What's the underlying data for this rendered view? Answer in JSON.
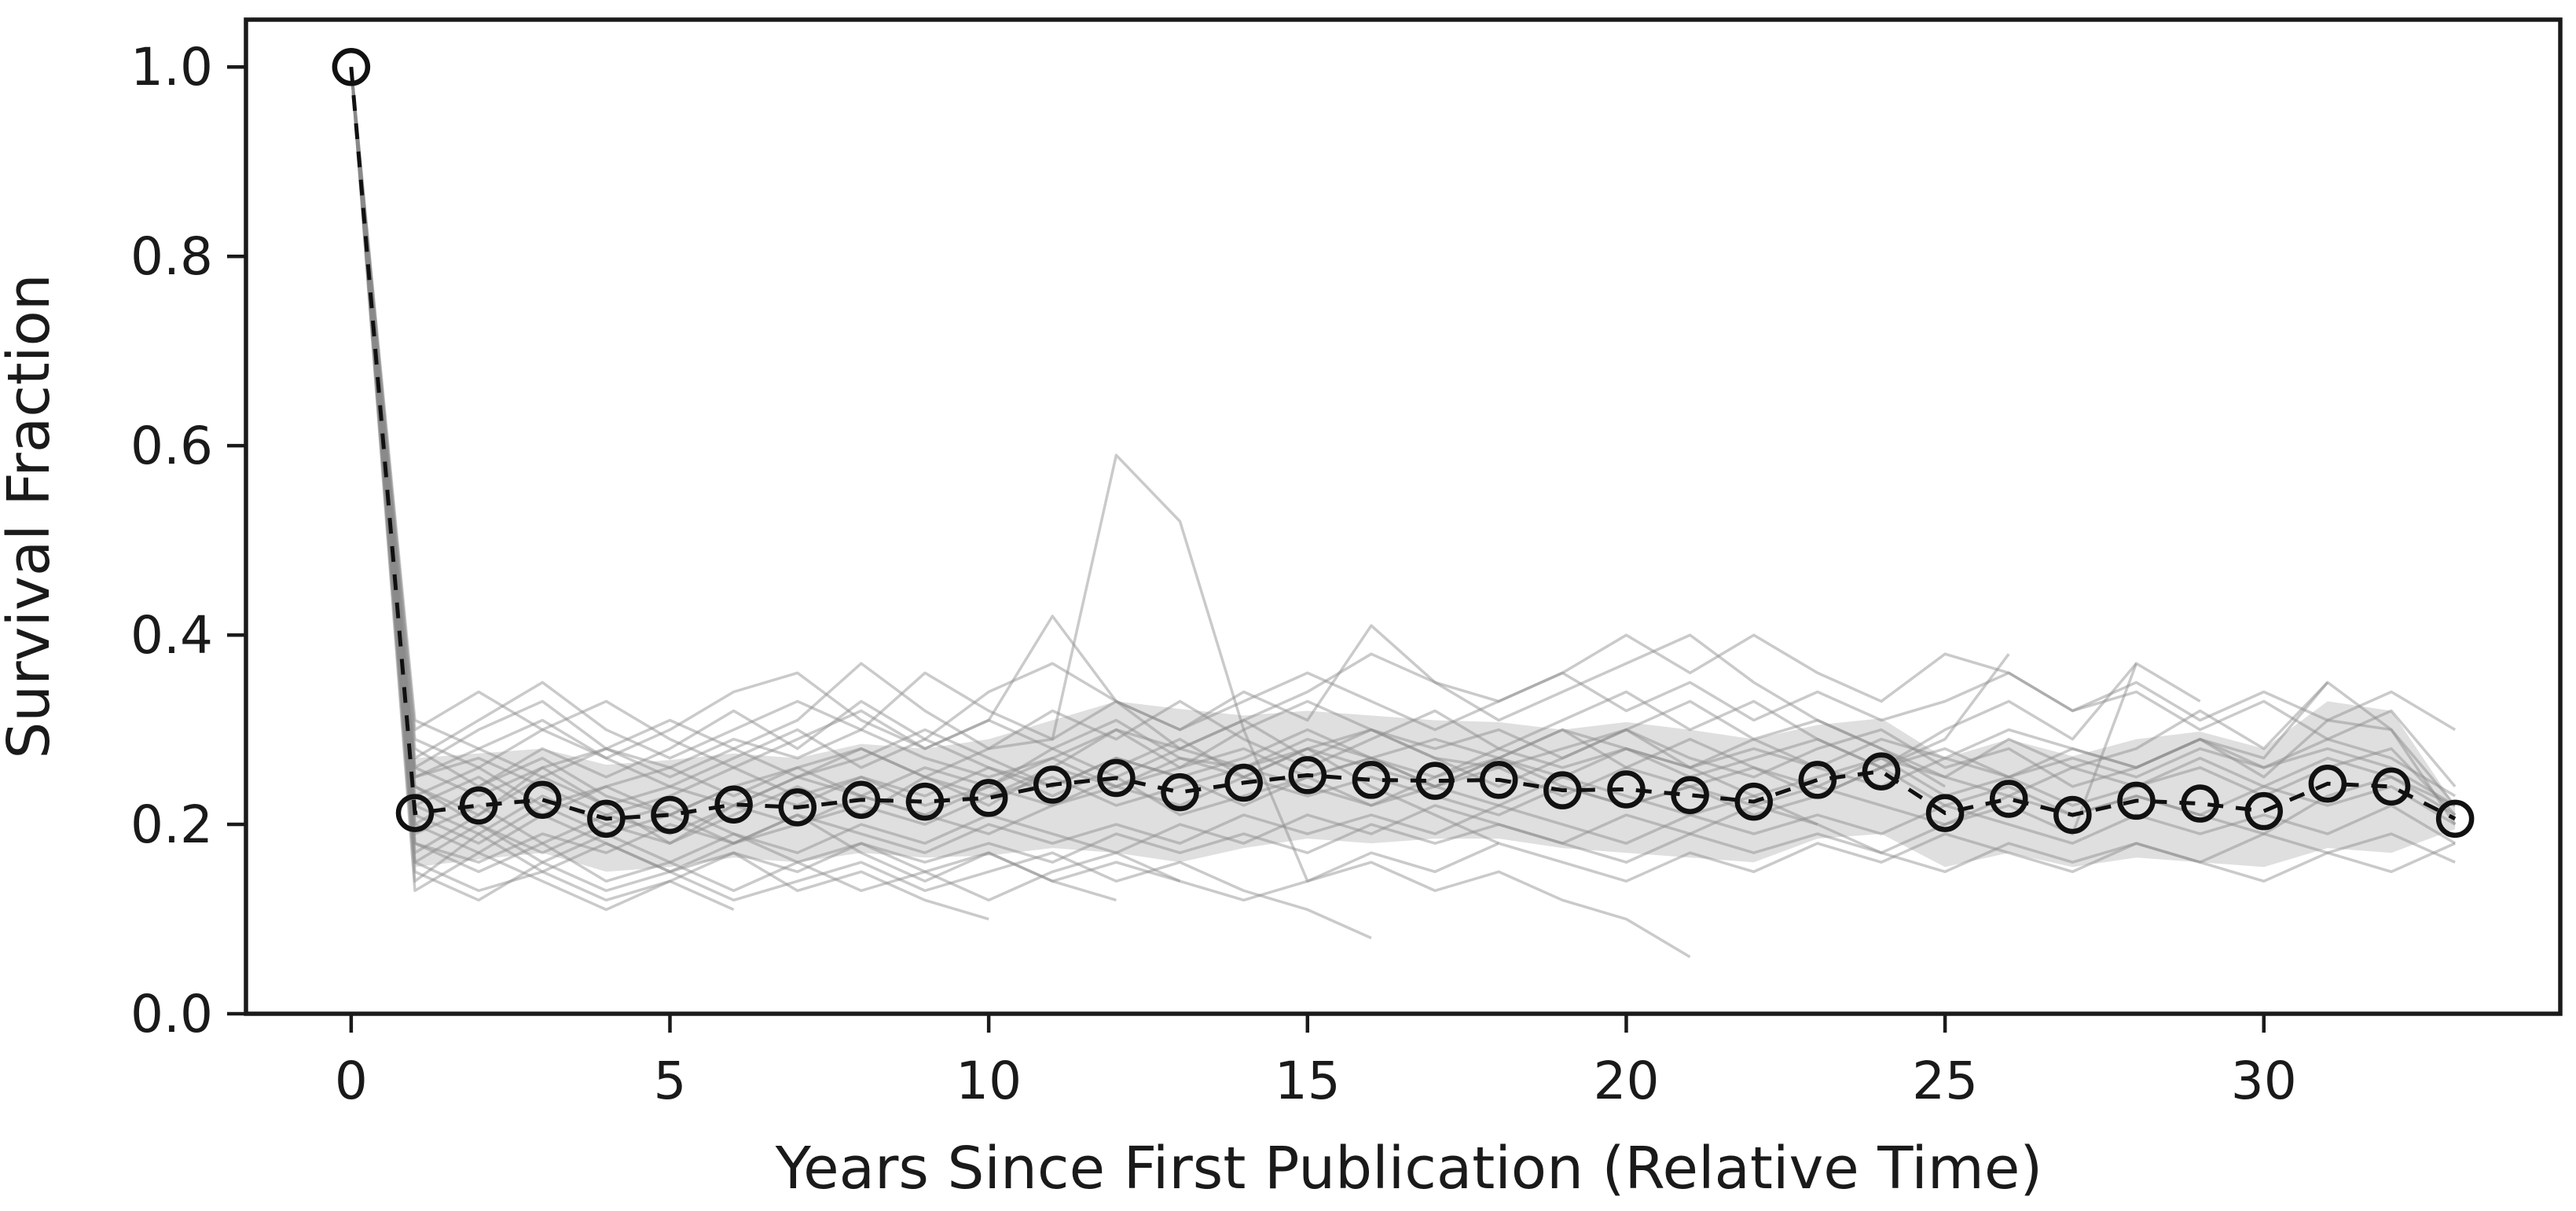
{
  "figure": {
    "background": "#ffffff"
  },
  "chart_data": {
    "type": "line",
    "title": "",
    "xlabel": "Years Since First Publication (Relative Time)",
    "ylabel": "Survival Fraction",
    "xlim": [
      -1.65,
      34.65
    ],
    "ylim": [
      0,
      1.05
    ],
    "xticks": [
      0,
      5,
      10,
      15,
      20,
      25,
      30
    ],
    "ytick_values": [
      0.0,
      0.2,
      0.4,
      0.6,
      0.8,
      1.0
    ],
    "ytick_labels": [
      "0.0",
      "0.2",
      "0.4",
      "0.6",
      "0.8",
      "1.0"
    ],
    "grid": false,
    "legend": null,
    "mean_series": {
      "name": "mean-survival-fraction",
      "marker": "open-circle",
      "linestyle": "dashed",
      "x": [
        0,
        1,
        2,
        3,
        4,
        5,
        6,
        7,
        8,
        9,
        10,
        11,
        12,
        13,
        14,
        15,
        16,
        17,
        18,
        19,
        20,
        21,
        22,
        23,
        24,
        25,
        26,
        27,
        28,
        29,
        30,
        31,
        32,
        33
      ],
      "y": [
        1.0,
        0.212,
        0.22,
        0.226,
        0.206,
        0.21,
        0.221,
        0.218,
        0.226,
        0.224,
        0.228,
        0.242,
        0.249,
        0.234,
        0.244,
        0.252,
        0.247,
        0.246,
        0.247,
        0.236,
        0.237,
        0.231,
        0.224,
        0.247,
        0.256,
        0.212,
        0.227,
        0.21,
        0.225,
        0.222,
        0.214,
        0.243,
        0.24,
        0.206
      ]
    },
    "band": {
      "name": "spread-band",
      "x_start": 1,
      "upper": [
        0.27,
        0.275,
        0.28,
        0.263,
        0.268,
        0.275,
        0.27,
        0.285,
        0.28,
        0.29,
        0.31,
        0.33,
        0.322,
        0.315,
        0.32,
        0.315,
        0.31,
        0.308,
        0.3,
        0.308,
        0.3,
        0.29,
        0.305,
        0.312,
        0.27,
        0.29,
        0.272,
        0.29,
        0.298,
        0.28,
        0.33,
        0.32,
        0.22
      ],
      "lower": [
        0.155,
        0.163,
        0.17,
        0.15,
        0.155,
        0.165,
        0.16,
        0.17,
        0.165,
        0.167,
        0.175,
        0.17,
        0.16,
        0.175,
        0.185,
        0.18,
        0.185,
        0.185,
        0.175,
        0.17,
        0.165,
        0.16,
        0.185,
        0.19,
        0.155,
        0.17,
        0.155,
        0.165,
        0.16,
        0.155,
        0.175,
        0.17,
        0.195
      ]
    },
    "runs": {
      "name": "individual-simulation-runs",
      "x_start": 0,
      "values": [
        [
          1.0,
          0.25,
          0.27,
          0.24,
          0.21,
          0.23,
          0.26,
          0.23,
          0.25,
          0.22,
          0.24,
          0.28,
          0.31,
          0.27,
          0.26,
          0.28,
          0.3,
          0.27,
          0.26,
          0.28,
          0.3,
          0.27,
          0.25,
          0.28,
          0.3,
          0.26,
          0.28,
          0.24,
          0.26,
          0.29,
          0.25,
          0.31,
          0.3,
          0.22
        ],
        [
          1.0,
          0.21,
          0.18,
          0.22,
          0.19,
          0.21,
          0.18,
          0.2,
          0.22,
          0.2,
          0.23,
          0.25,
          0.22,
          0.24,
          0.26,
          0.24,
          0.22,
          0.25,
          0.27,
          0.24,
          0.22,
          0.24,
          0.21,
          0.23,
          0.26,
          0.22,
          0.24,
          0.21,
          0.23,
          0.21,
          0.19,
          0.23,
          0.25,
          0.21
        ],
        [
          1.0,
          0.17,
          0.21,
          0.26,
          0.22,
          0.18,
          0.22,
          0.25,
          0.28,
          0.25,
          0.22,
          0.26,
          0.3,
          0.26,
          0.3,
          0.33,
          0.3,
          0.28,
          0.3,
          0.27,
          0.3,
          0.33,
          0.29,
          0.31,
          0.28,
          0.25,
          0.29,
          0.26,
          0.28,
          0.32,
          0.28,
          0.35,
          0.3,
          0.2
        ],
        [
          1.0,
          0.28,
          0.24,
          0.28,
          0.25,
          0.28,
          0.32,
          0.28,
          0.33,
          0.29,
          0.34,
          0.37,
          0.33,
          0.3,
          0.34,
          0.31,
          0.41,
          0.35,
          0.33,
          0.36,
          0.32,
          0.35,
          0.31,
          0.34,
          0.31,
          0.33,
          0.36,
          0.32,
          0.34,
          0.3,
          0.33,
          0.29,
          0.32,
          0.24
        ],
        [
          1.0,
          0.22,
          0.19,
          0.23,
          0.2,
          0.18,
          0.21,
          0.24,
          0.21,
          0.25,
          0.28,
          0.29,
          0.59,
          0.52,
          0.3,
          0.14,
          0.17,
          0.15,
          0.18,
          0.16,
          0.14,
          0.17,
          0.15,
          0.18,
          0.16,
          0.19,
          0.17,
          0.15,
          0.18,
          0.16,
          0.14,
          0.17,
          0.15,
          0.18
        ],
        [
          1.0,
          0.14,
          0.19,
          0.15,
          0.12,
          0.14,
          0.11
        ],
        [
          1.0,
          0.24,
          0.2,
          0.16,
          0.19,
          0.16,
          0.13,
          0.16,
          0.18,
          0.15,
          0.17,
          0.14,
          0.16,
          0.14
        ],
        [
          1.0,
          0.18,
          0.15,
          0.18,
          0.14,
          0.16,
          0.19,
          0.16,
          0.13,
          0.15,
          0.12,
          0.15,
          0.17,
          0.14,
          0.12,
          0.14,
          0.16,
          0.13,
          0.15,
          0.12,
          0.1,
          0.06
        ],
        [
          1.0,
          0.3,
          0.34,
          0.3,
          0.27,
          0.3,
          0.34,
          0.36,
          0.31,
          0.28,
          0.31,
          0.42,
          0.33,
          0.28,
          0.31,
          0.34,
          0.38,
          0.35,
          0.31,
          0.34,
          0.37,
          0.4,
          0.35,
          0.31,
          0.28,
          0.24
        ],
        [
          1.0,
          0.19,
          0.22,
          0.18,
          0.21,
          0.19,
          0.22,
          0.2,
          0.23,
          0.21,
          0.19,
          0.22,
          0.25,
          0.21,
          0.23,
          0.25,
          0.22,
          0.24,
          0.22,
          0.25,
          0.23,
          0.21,
          0.23,
          0.25,
          0.27,
          0.23,
          0.25,
          0.22,
          0.24,
          0.26,
          0.23,
          0.26,
          0.28,
          0.21
        ],
        [
          1.0,
          0.26,
          0.3,
          0.33,
          0.28,
          0.25,
          0.28,
          0.31,
          0.37,
          0.32,
          0.28,
          0.32,
          0.29,
          0.33,
          0.29,
          0.26,
          0.29,
          0.32,
          0.28,
          0.31,
          0.34,
          0.3,
          0.33,
          0.29,
          0.26,
          0.3,
          0.33,
          0.29,
          0.37
        ],
        [
          1.0,
          0.23,
          0.26,
          0.22,
          0.24,
          0.21,
          0.24,
          0.26,
          0.23,
          0.26,
          0.24,
          0.27,
          0.24,
          0.26,
          0.28,
          0.25,
          0.27,
          0.25,
          0.28,
          0.26,
          0.28,
          0.25,
          0.27,
          0.29,
          0.26,
          0.28,
          0.25,
          0.27,
          0.25,
          0.28,
          0.26,
          0.29,
          0.27,
          0.23
        ],
        [
          1.0,
          0.15,
          0.12,
          0.16,
          0.13,
          0.15,
          0.12,
          0.14,
          0.16,
          0.13,
          0.15,
          0.17,
          0.14,
          0.16,
          0.13,
          0.11,
          0.08
        ],
        [
          1.0,
          0.2,
          0.24,
          0.27,
          0.23,
          0.21,
          0.24,
          0.22,
          0.25,
          0.23,
          0.26,
          0.24,
          0.27,
          0.25,
          0.22,
          0.25,
          0.27,
          0.24,
          0.26,
          0.23,
          0.26,
          0.24,
          0.26,
          0.24,
          0.27,
          0.25,
          0.23,
          0.26,
          0.24,
          0.27,
          0.24,
          0.27,
          0.25,
          0.22
        ],
        [
          1.0,
          0.16,
          0.2,
          0.17,
          0.2,
          0.22,
          0.19,
          0.17,
          0.2,
          0.18,
          0.21,
          0.19,
          0.17,
          0.2,
          0.18,
          0.21,
          0.19,
          0.22,
          0.2,
          0.18,
          0.21,
          0.19,
          0.22,
          0.2,
          0.17,
          0.2,
          0.22,
          0.19,
          0.37,
          0.33
        ],
        [
          1.0,
          0.27,
          0.31,
          0.35,
          0.3,
          0.27,
          0.3,
          0.33,
          0.3,
          0.36,
          0.32,
          0.29,
          0.33,
          0.3,
          0.33,
          0.36,
          0.33,
          0.3,
          0.33,
          0.36,
          0.4,
          0.36,
          0.4,
          0.36,
          0.33,
          0.38,
          0.36,
          0.32,
          0.35,
          0.31,
          0.34,
          0.31,
          0.34,
          0.3
        ],
        [
          1.0,
          0.13,
          0.17,
          0.14,
          0.11,
          0.14,
          0.17,
          0.13,
          0.15,
          0.12,
          0.1
        ],
        [
          1.0,
          0.24,
          0.21,
          0.25,
          0.22,
          0.24,
          0.22,
          0.25,
          0.23,
          0.21,
          0.24,
          0.22,
          0.24,
          0.22,
          0.25,
          0.23,
          0.25,
          0.23,
          0.21,
          0.24,
          0.22,
          0.24,
          0.22,
          0.24,
          0.22,
          0.2,
          0.23,
          0.21,
          0.23,
          0.21,
          0.24,
          0.22,
          0.24,
          0.2
        ],
        [
          1.0,
          0.29,
          0.26,
          0.3,
          0.33,
          0.29,
          0.26,
          0.29,
          0.32,
          0.28,
          0.31,
          0.28,
          0.25,
          0.28,
          0.31,
          0.27,
          0.3,
          0.27,
          0.24,
          0.27,
          0.3,
          0.26,
          0.23,
          0.2
        ],
        [
          1.0,
          0.18,
          0.16,
          0.19,
          0.17,
          0.2,
          0.18,
          0.21,
          0.19,
          0.17,
          0.2,
          0.18,
          0.2,
          0.18,
          0.21,
          0.19,
          0.21,
          0.19,
          0.22,
          0.2,
          0.18,
          0.21,
          0.19,
          0.21,
          0.19,
          0.22,
          0.2,
          0.18,
          0.21,
          0.19,
          0.21,
          0.19,
          0.22,
          0.18
        ],
        [
          1.0,
          0.22,
          0.25,
          0.21,
          0.24,
          0.26,
          0.23,
          0.26,
          0.28,
          0.25,
          0.23,
          0.26,
          0.24,
          0.27,
          0.25,
          0.28,
          0.26,
          0.24,
          0.27,
          0.25,
          0.28,
          0.26,
          0.29,
          0.26,
          0.24,
          0.27,
          0.25,
          0.28,
          0.26,
          0.29,
          0.27,
          0.35
        ],
        [
          1.0,
          0.25,
          0.28,
          0.31,
          0.27,
          0.24,
          0.27,
          0.3,
          0.26,
          0.29,
          0.26,
          0.23,
          0.26,
          0.29,
          0.25,
          0.28,
          0.24,
          0.21,
          0.18
        ],
        [
          1.0,
          0.16,
          0.13,
          0.15,
          0.18,
          0.15,
          0.17,
          0.15,
          0.18,
          0.16,
          0.18,
          0.16,
          0.19,
          0.17,
          0.19,
          0.17,
          0.2,
          0.18,
          0.2,
          0.18,
          0.16,
          0.19,
          0.17,
          0.19,
          0.17,
          0.15,
          0.18,
          0.16,
          0.18,
          0.16,
          0.19,
          0.17,
          0.19,
          0.16
        ],
        [
          1.0,
          0.31,
          0.28,
          0.25,
          0.28,
          0.31,
          0.28,
          0.25,
          0.27,
          0.3,
          0.27,
          0.24,
          0.27,
          0.25,
          0.27,
          0.3,
          0.27,
          0.24,
          0.27,
          0.3,
          0.26,
          0.29,
          0.26,
          0.23,
          0.26,
          0.29,
          0.38
        ],
        [
          1.0,
          0.2,
          0.17,
          0.21,
          0.18,
          0.15,
          0.18,
          0.21,
          0.17,
          0.14,
          0.17,
          0.14,
          0.12
        ],
        [
          1.0,
          0.26,
          0.23,
          0.26,
          0.28,
          0.26,
          0.29,
          0.27,
          0.3,
          0.27,
          0.25,
          0.27,
          0.3,
          0.28,
          0.26,
          0.29,
          0.27,
          0.29,
          0.27,
          0.3,
          0.28,
          0.26,
          0.28,
          0.26,
          0.29,
          0.27,
          0.3,
          0.28,
          0.26,
          0.29,
          0.26,
          0.28,
          0.26,
          0.22
        ]
      ]
    }
  },
  "styles": {
    "spine_color": "#1a1a1a",
    "tick_color": "#1a1a1a",
    "text_color": "#1a1a1a",
    "mean_line_color": "#111111",
    "band_fill_color": "#bfbfbf",
    "band_fill_opacity": 0.5,
    "run_line_color": "#8a8a8a",
    "run_line_opacity": 0.45
  }
}
